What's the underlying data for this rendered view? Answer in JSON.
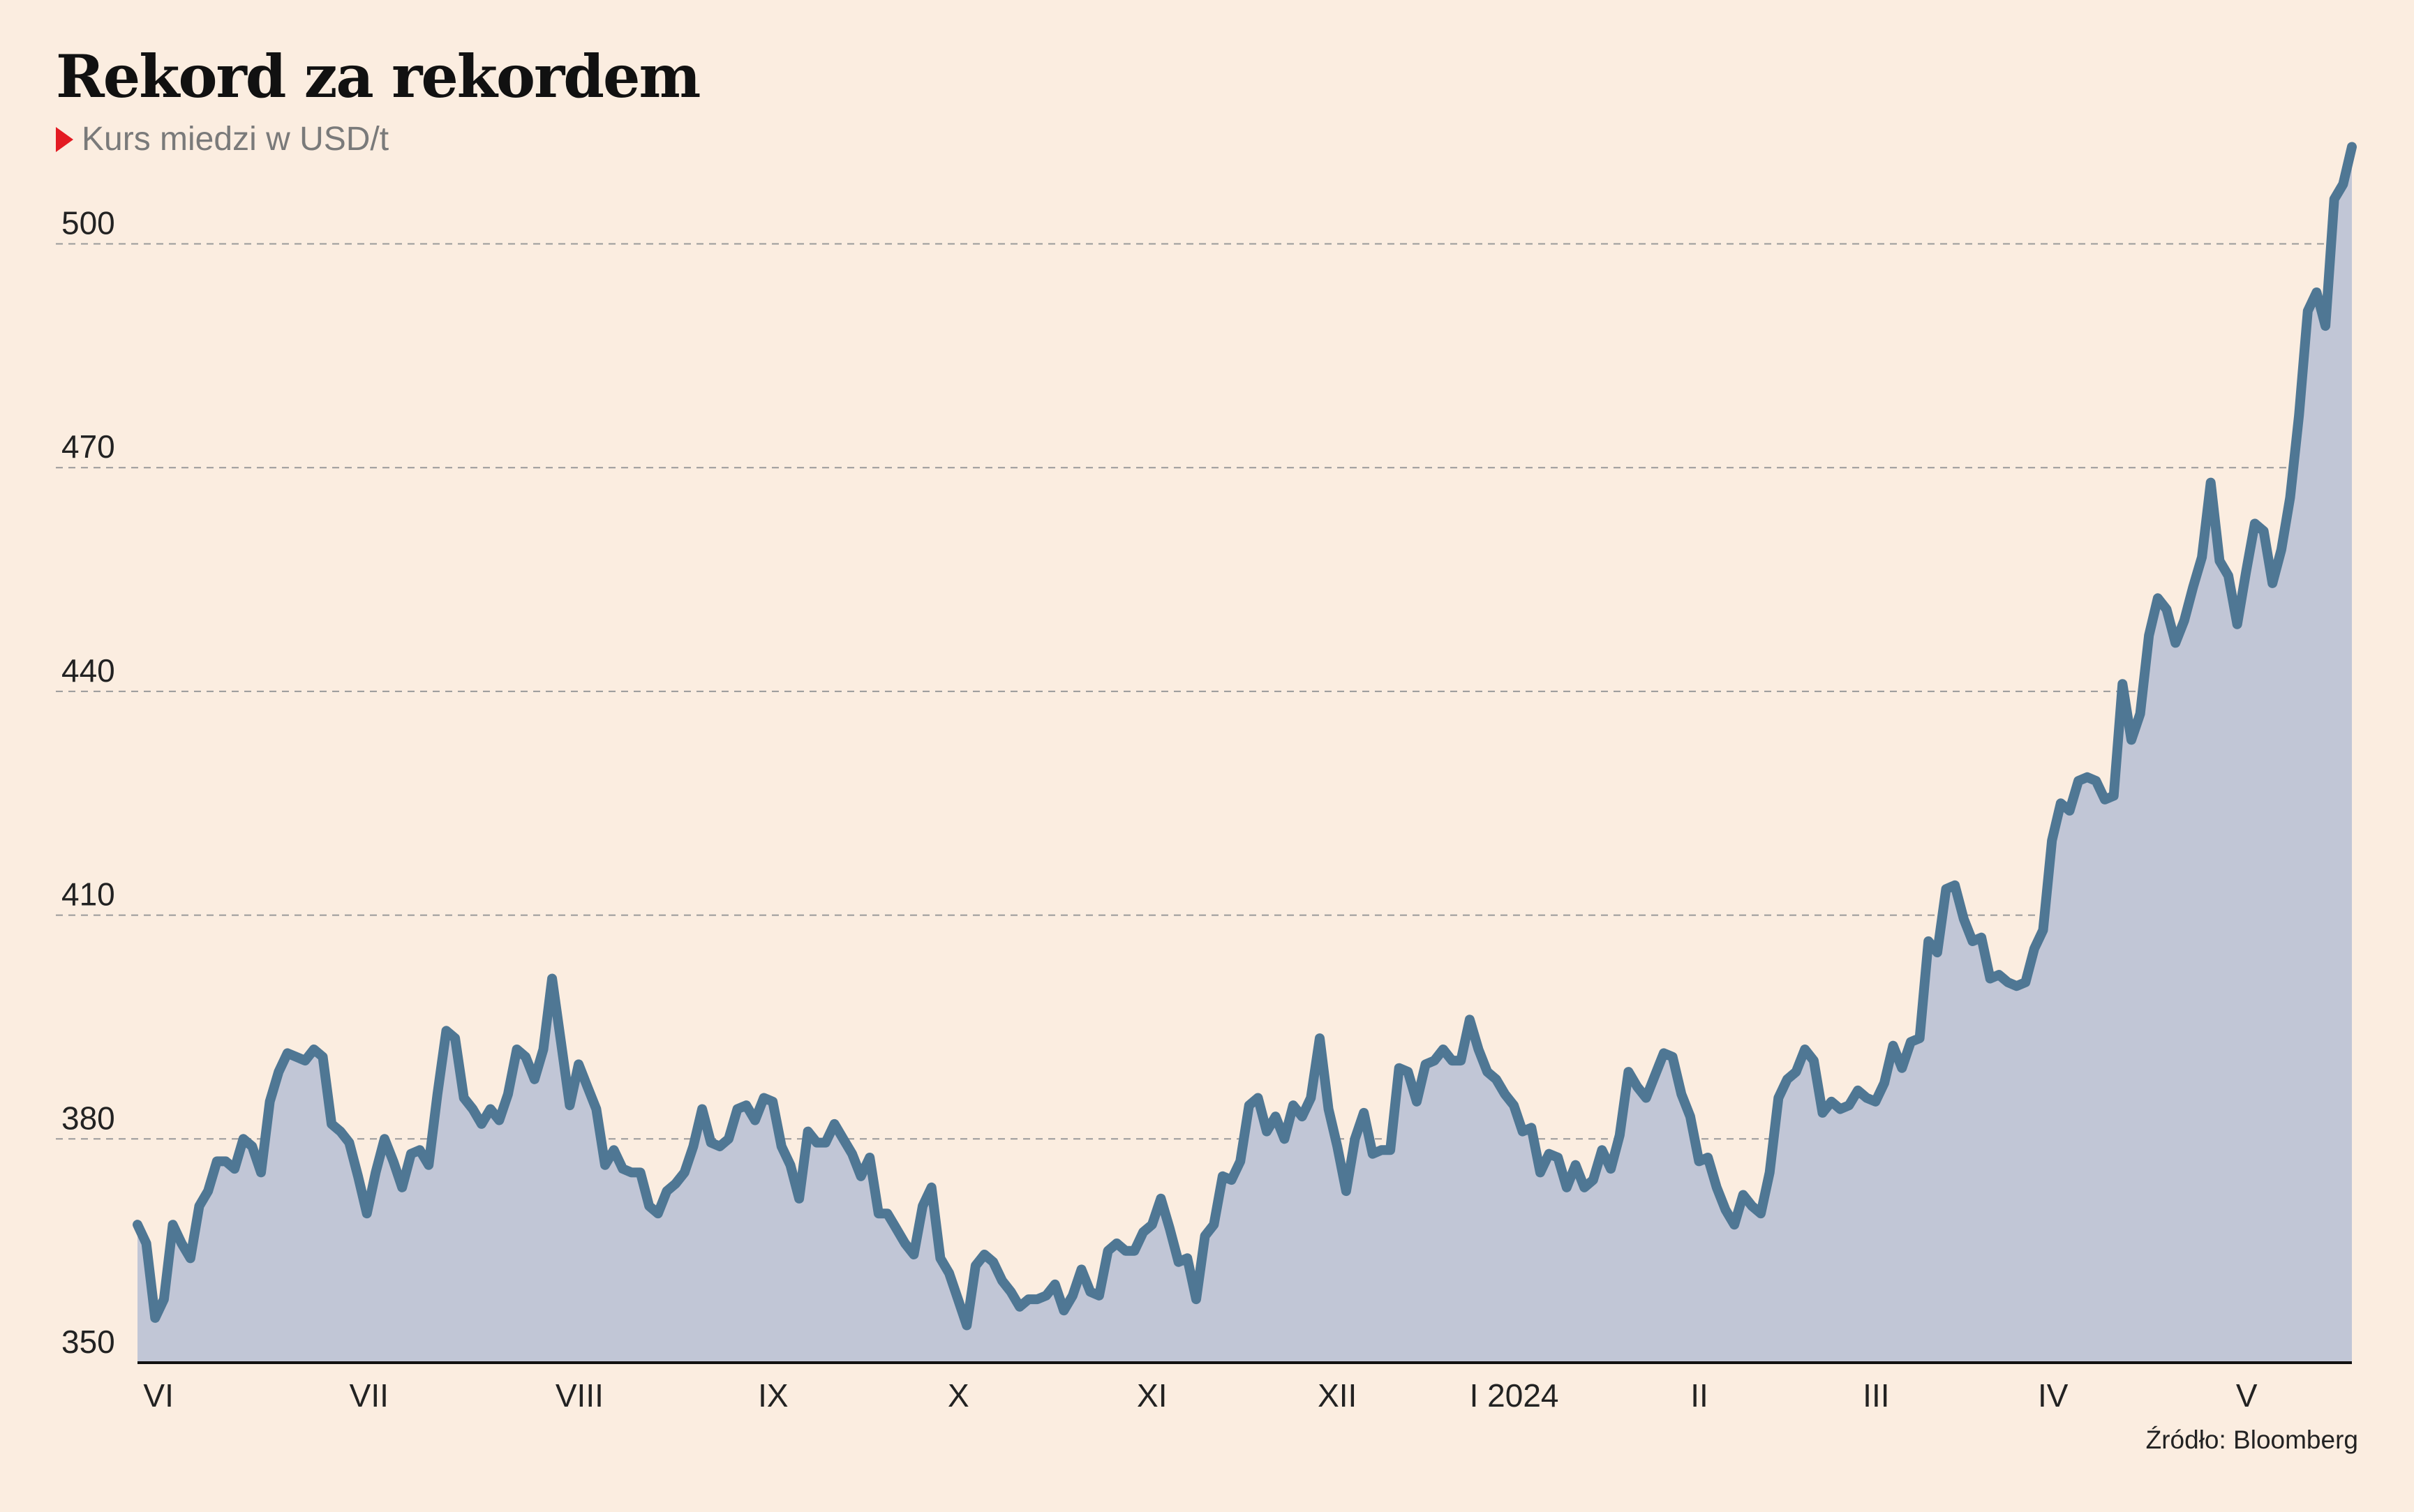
{
  "title": "Rekord za rekordem",
  "subtitle": "Kurs miedzi w USD/t",
  "source": "Źródło: Bloomberg",
  "colors": {
    "background": "#fbede0",
    "line": "#4f7794",
    "area": "#c1c6d6",
    "marker": "#e31b23",
    "grid": "#9a9a9a"
  },
  "chart_data": {
    "type": "area",
    "title": "Rekord za rekordem",
    "subtitle": "Kurs miedzi w USD/t",
    "xlabel": "",
    "ylabel": "",
    "ylim": [
      350,
      510
    ],
    "y_ticks": [
      350,
      380,
      410,
      440,
      470,
      500
    ],
    "grid": true,
    "x_month_labels": [
      "VI",
      "VII",
      "VIII",
      "IX",
      "X",
      "XI",
      "XII",
      "I 2024",
      "II",
      "III",
      "IV",
      "V"
    ],
    "x_month_positions": [
      2.5,
      27.5,
      52.5,
      75.5,
      97.5,
      120.5,
      142.5,
      163.5,
      185.5,
      206.5,
      227.5,
      250.5
    ],
    "x_range": [
      0,
      263
    ],
    "values": [
      368.5,
      366,
      356,
      358.5,
      368.5,
      366,
      364,
      371,
      373,
      377,
      377,
      376,
      380,
      379,
      375.5,
      385,
      389,
      391.5,
      391,
      390.5,
      392,
      391,
      382,
      381,
      379.5,
      375,
      370,
      375.5,
      380,
      377,
      373.5,
      378,
      378.5,
      376.5,
      386,
      394.5,
      393.5,
      385.5,
      384,
      382,
      384,
      382.5,
      386,
      392,
      391,
      388,
      392,
      401.5,
      393,
      384.5,
      390,
      387,
      384,
      376.5,
      378.5,
      376,
      375.5,
      375.5,
      371,
      370,
      373,
      374,
      375.5,
      379,
      384,
      379.5,
      379,
      380,
      384,
      384.5,
      382.5,
      385.5,
      385,
      379,
      376.5,
      372,
      381,
      379.5,
      379.5,
      382,
      380,
      378,
      375,
      377.5,
      370,
      370,
      368,
      366,
      364.5,
      371,
      373.5,
      364,
      362,
      358.5,
      355,
      363,
      364.5,
      363.5,
      361,
      359.5,
      357.5,
      358.5,
      358.5,
      359,
      360.5,
      357,
      359,
      362.5,
      359.5,
      359,
      365,
      366,
      365,
      365,
      367.5,
      368.5,
      372,
      368,
      363.5,
      364,
      358.5,
      367,
      368.5,
      375,
      374.5,
      377,
      384.5,
      385.5,
      381,
      383,
      380,
      384.5,
      383,
      385.5,
      393.5,
      384,
      379,
      373,
      380,
      383.5,
      378,
      378.5,
      378.5,
      389.5,
      389,
      385,
      390,
      390.5,
      392,
      390.5,
      390.5,
      396,
      392,
      389,
      388,
      386,
      384.5,
      381,
      381.5,
      375.5,
      378,
      377.5,
      373.5,
      376.5,
      373.5,
      374.5,
      378.5,
      376,
      380.5,
      389,
      387,
      385.5,
      388.5,
      391.5,
      391,
      386,
      383,
      377,
      377.5,
      373.5,
      370.5,
      368.5,
      372.5,
      371,
      370,
      375.5,
      385.5,
      388,
      389,
      392,
      390.5,
      383.5,
      385,
      384,
      384.5,
      386.5,
      385.5,
      385,
      387.5,
      392.5,
      389.5,
      393,
      393.5,
      406.5,
      405,
      413.5,
      414,
      409.5,
      406.5,
      407,
      401.5,
      402,
      401,
      400.5,
      401,
      405.5,
      408,
      420,
      425,
      424,
      428,
      428.5,
      428,
      425.5,
      426,
      441,
      433.5,
      437,
      447.5,
      452.5,
      451,
      446.5,
      449.5,
      454,
      458,
      468,
      457.5,
      455.5,
      449,
      456,
      462.5,
      461.5,
      454.5,
      459,
      466,
      477,
      491,
      493.5,
      489,
      506,
      508,
      513
    ]
  }
}
